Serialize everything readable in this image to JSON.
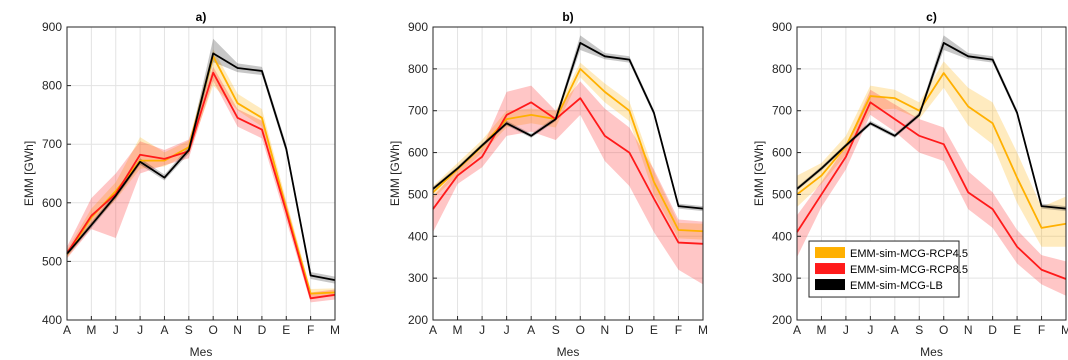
{
  "chart_data": [
    {
      "type": "line",
      "title": "a)",
      "xlabel": "Mes",
      "ylabel": "EMM [GWh]",
      "categories": [
        "A",
        "M",
        "J",
        "J",
        "A",
        "S",
        "O",
        "N",
        "D",
        "E",
        "F",
        "M"
      ],
      "ylim": [
        400,
        900
      ],
      "yticks": [
        400,
        500,
        600,
        700,
        800,
        900
      ],
      "grid": true,
      "series": [
        {
          "name": "EMM-sim-MCG-RCP4.5",
          "color": "#FFB000",
          "values": [
            512,
            575,
            620,
            672,
            672,
            695,
            850,
            770,
            745,
            590,
            445,
            447
          ],
          "lower": [
            506,
            562,
            605,
            658,
            662,
            684,
            800,
            758,
            730,
            578,
            439,
            440
          ],
          "upper": [
            520,
            590,
            635,
            712,
            686,
            706,
            862,
            786,
            760,
            604,
            453,
            454
          ]
        },
        {
          "name": "EMM-sim-MCG-RCP8.5",
          "color": "#FF1A1A",
          "values": [
            514,
            578,
            615,
            682,
            675,
            688,
            822,
            745,
            725,
            585,
            437,
            443
          ],
          "lower": [
            505,
            555,
            540,
            650,
            664,
            676,
            808,
            730,
            710,
            570,
            430,
            435
          ],
          "upper": [
            525,
            608,
            650,
            705,
            690,
            708,
            832,
            760,
            740,
            600,
            447,
            452
          ]
        },
        {
          "name": "EMM-sim-MCG-LB",
          "color": "#000000",
          "values": [
            513,
            562,
            612,
            670,
            643,
            690,
            855,
            830,
            825,
            692,
            476,
            468
          ],
          "lower": [
            509,
            557,
            607,
            665,
            638,
            684,
            840,
            823,
            818,
            685,
            470,
            462
          ],
          "upper": [
            518,
            567,
            617,
            676,
            648,
            696,
            880,
            838,
            832,
            700,
            482,
            474
          ]
        }
      ]
    },
    {
      "type": "line",
      "title": "b)",
      "xlabel": "Mes",
      "ylabel": "EMM [GWh]",
      "categories": [
        "A",
        "M",
        "J",
        "J",
        "A",
        "S",
        "O",
        "N",
        "D",
        "E",
        "F",
        "M"
      ],
      "ylim": [
        200,
        900
      ],
      "yticks": [
        200,
        300,
        400,
        500,
        600,
        700,
        800,
        900
      ],
      "grid": true,
      "series": [
        {
          "name": "EMM-sim-MCG-RCP4.5",
          "color": "#FFB000",
          "values": [
            505,
            560,
            615,
            680,
            690,
            680,
            800,
            745,
            700,
            530,
            415,
            412
          ],
          "lower": [
            490,
            545,
            600,
            660,
            670,
            660,
            780,
            720,
            675,
            500,
            395,
            392
          ],
          "upper": [
            520,
            575,
            630,
            700,
            705,
            700,
            815,
            765,
            722,
            555,
            432,
            430
          ]
        },
        {
          "name": "EMM-sim-MCG-RCP8.5",
          "color": "#FF1A1A",
          "values": [
            465,
            545,
            590,
            690,
            720,
            680,
            730,
            640,
            600,
            490,
            385,
            382
          ],
          "lower": [
            410,
            525,
            565,
            640,
            650,
            630,
            690,
            580,
            520,
            410,
            320,
            285
          ],
          "upper": [
            495,
            560,
            610,
            745,
            760,
            700,
            770,
            705,
            660,
            560,
            440,
            435
          ]
        },
        {
          "name": "EMM-sim-MCG-LB",
          "color": "#000000",
          "values": [
            513,
            562,
            617,
            670,
            640,
            680,
            862,
            830,
            822,
            695,
            472,
            466
          ],
          "lower": [
            509,
            557,
            612,
            665,
            635,
            675,
            845,
            823,
            815,
            688,
            466,
            460
          ],
          "upper": [
            518,
            567,
            622,
            676,
            645,
            686,
            880,
            838,
            830,
            702,
            478,
            472
          ]
        }
      ]
    },
    {
      "type": "line",
      "title": "c)",
      "xlabel": "Mes",
      "ylabel": "EMM [GWh]",
      "categories": [
        "A",
        "M",
        "J",
        "J",
        "A",
        "S",
        "O",
        "N",
        "D",
        "E",
        "F",
        "M"
      ],
      "ylim": [
        200,
        900
      ],
      "yticks": [
        200,
        300,
        400,
        500,
        600,
        700,
        800,
        900
      ],
      "grid": true,
      "legend": "lower-left",
      "series": [
        {
          "name": "EMM-sim-MCG-RCP4.5",
          "color": "#FFB000",
          "values": [
            500,
            545,
            615,
            735,
            730,
            700,
            790,
            710,
            670,
            540,
            420,
            430
          ],
          "lower": [
            470,
            525,
            595,
            700,
            705,
            680,
            755,
            665,
            620,
            480,
            375,
            375
          ],
          "upper": [
            545,
            575,
            640,
            760,
            750,
            720,
            818,
            755,
            720,
            600,
            470,
            495
          ]
        },
        {
          "name": "EMM-sim-MCG-RCP8.5",
          "color": "#FF1A1A",
          "values": [
            410,
            500,
            590,
            720,
            680,
            640,
            620,
            505,
            465,
            375,
            320,
            298
          ],
          "lower": [
            350,
            470,
            560,
            690,
            650,
            600,
            580,
            465,
            420,
            335,
            285,
            258
          ],
          "upper": [
            450,
            530,
            615,
            750,
            715,
            680,
            660,
            555,
            505,
            415,
            355,
            340
          ]
        },
        {
          "name": "EMM-sim-MCG-LB",
          "color": "#000000",
          "values": [
            513,
            562,
            617,
            670,
            640,
            690,
            862,
            830,
            822,
            695,
            472,
            466
          ],
          "lower": [
            509,
            557,
            612,
            665,
            635,
            685,
            845,
            823,
            815,
            688,
            466,
            460
          ],
          "upper": [
            518,
            567,
            622,
            676,
            645,
            696,
            880,
            838,
            830,
            702,
            478,
            472
          ]
        }
      ]
    }
  ]
}
